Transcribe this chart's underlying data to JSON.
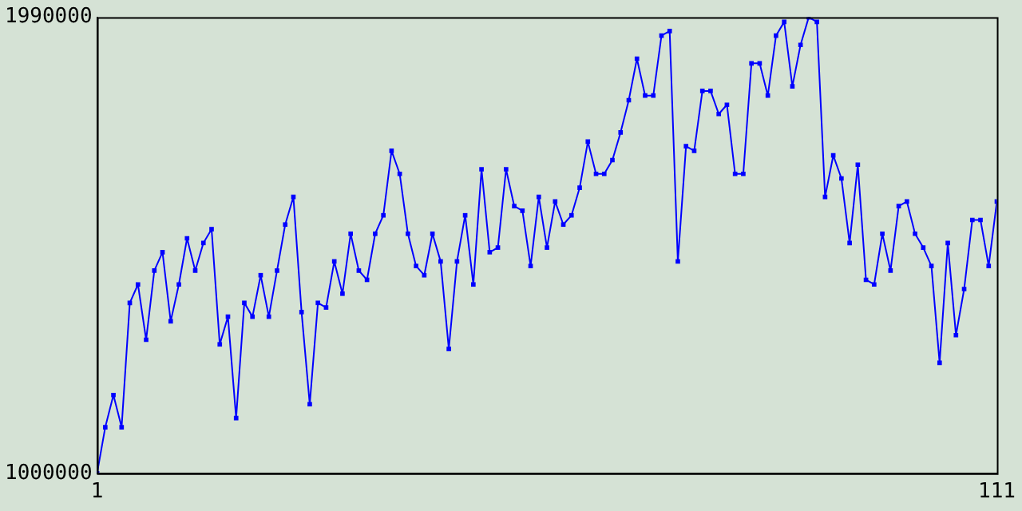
{
  "chart_data": {
    "type": "line",
    "x": [
      1,
      2,
      3,
      4,
      5,
      6,
      7,
      8,
      9,
      10,
      11,
      12,
      13,
      14,
      15,
      16,
      17,
      18,
      19,
      20,
      21,
      22,
      23,
      24,
      25,
      26,
      27,
      28,
      29,
      30,
      31,
      32,
      33,
      34,
      35,
      36,
      37,
      38,
      39,
      40,
      41,
      42,
      43,
      44,
      45,
      46,
      47,
      48,
      49,
      50,
      51,
      52,
      53,
      54,
      55,
      56,
      57,
      58,
      59,
      60,
      61,
      62,
      63,
      64,
      65,
      66,
      67,
      68,
      69,
      70,
      71,
      72,
      73,
      74,
      75,
      76,
      77,
      78,
      79,
      80,
      81,
      82,
      83,
      84,
      85,
      86,
      87,
      88,
      89,
      90,
      91,
      92,
      93,
      94,
      95,
      96,
      97,
      98,
      99,
      100,
      101,
      102,
      103,
      104,
      105,
      106,
      107,
      108,
      109,
      110,
      111
    ],
    "series": [
      {
        "color": "#0000ff",
        "values": [
          1000000,
          1100000,
          1170000,
          1100000,
          1370000,
          1410000,
          1290000,
          1440000,
          1480000,
          1330000,
          1410000,
          1510000,
          1440000,
          1500000,
          1530000,
          1280000,
          1340000,
          1120000,
          1370000,
          1340000,
          1430000,
          1340000,
          1440000,
          1540000,
          1600000,
          1350000,
          1150000,
          1370000,
          1360000,
          1460000,
          1390000,
          1520000,
          1440000,
          1420000,
          1520000,
          1560000,
          1700000,
          1650000,
          1520000,
          1450000,
          1430000,
          1520000,
          1460000,
          1270000,
          1460000,
          1560000,
          1410000,
          1660000,
          1480000,
          1490000,
          1660000,
          1580000,
          1570000,
          1450000,
          1600000,
          1490000,
          1590000,
          1540000,
          1560000,
          1620000,
          1720000,
          1650000,
          1650000,
          1680000,
          1740000,
          1810000,
          1900000,
          1820000,
          1820000,
          1950000,
          1960000,
          1460000,
          1710000,
          1700000,
          1830000,
          1830000,
          1780000,
          1800000,
          1650000,
          1650000,
          1890000,
          1890000,
          1820000,
          1950000,
          1980000,
          1840000,
          1930000,
          1990000,
          1980000,
          1600000,
          1690000,
          1640000,
          1500000,
          1670000,
          1420000,
          1410000,
          1520000,
          1440000,
          1580000,
          1590000,
          1520000,
          1490000,
          1450000,
          1240000,
          1500000,
          1300000,
          1400000,
          1550000,
          1550000,
          1450000,
          1590000
        ]
      }
    ],
    "xlim": [
      1,
      111
    ],
    "xticks": [
      1,
      111
    ],
    "ylim": [
      1000000,
      1990000
    ],
    "yticks": [
      1000000,
      1990000
    ],
    "grid": false,
    "legend": false,
    "marker": "square",
    "line_style": "solid"
  }
}
